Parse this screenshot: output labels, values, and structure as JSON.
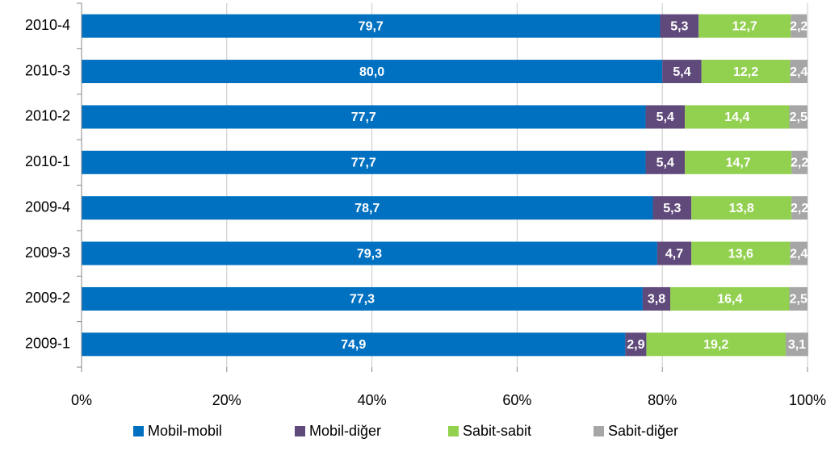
{
  "chart_data": {
    "type": "bar",
    "orientation": "horizontal",
    "stacked": true,
    "categories": [
      "2010-4",
      "2010-3",
      "2010-2",
      "2010-1",
      "2009-4",
      "2009-3",
      "2009-2",
      "2009-1"
    ],
    "series": [
      {
        "name": "Mobil-mobil",
        "color": "#0070c0",
        "values": [
          79.7,
          80.0,
          77.7,
          77.7,
          78.7,
          79.3,
          77.3,
          74.9
        ],
        "value_labels": [
          "79,7",
          "80,0",
          "77,7",
          "77,7",
          "78,7",
          "79,3",
          "77,3",
          "74,9"
        ]
      },
      {
        "name": "Mobil-diğer",
        "color": "#604a7b",
        "values": [
          5.3,
          5.4,
          5.4,
          5.4,
          5.3,
          4.7,
          3.8,
          2.9
        ],
        "value_labels": [
          "5,3",
          "5,4",
          "5,4",
          "5,4",
          "5,3",
          "4,7",
          "3,8",
          "2,9"
        ]
      },
      {
        "name": "Sabit-sabit",
        "color": "#92d050",
        "values": [
          12.7,
          12.2,
          14.4,
          14.7,
          13.8,
          13.6,
          16.4,
          19.2
        ],
        "value_labels": [
          "12,7",
          "12,2",
          "14,4",
          "14,7",
          "13,8",
          "13,6",
          "16,4",
          "19,2"
        ]
      },
      {
        "name": "Sabit-diğer",
        "color": "#a6a6a6",
        "values": [
          2.2,
          2.4,
          2.5,
          2.2,
          2.2,
          2.4,
          2.5,
          3.1
        ],
        "value_labels": [
          "2,2",
          "2,4",
          "2,5",
          "2,2",
          "2,2",
          "2,4",
          "2,5",
          "3,1"
        ]
      }
    ],
    "xlim": [
      0,
      100
    ],
    "xticks": [
      {
        "value": 0,
        "label": "0%"
      },
      {
        "value": 20,
        "label": "20%"
      },
      {
        "value": 40,
        "label": "40%"
      },
      {
        "value": 60,
        "label": "60%"
      },
      {
        "value": 80,
        "label": "80%"
      },
      {
        "value": 100,
        "label": "100%"
      }
    ],
    "grid": true,
    "legend": "bottom"
  }
}
